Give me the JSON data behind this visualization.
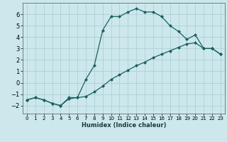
{
  "xlabel": "Humidex (Indice chaleur)",
  "bg_color": "#cce8ec",
  "grid_color": "#b0d0d5",
  "line_color": "#1a6060",
  "xlim": [
    -0.5,
    23.5
  ],
  "ylim": [
    -2.7,
    7.0
  ],
  "yticks": [
    -2,
    -1,
    0,
    1,
    2,
    3,
    4,
    5,
    6
  ],
  "xticks": [
    0,
    1,
    2,
    3,
    4,
    5,
    6,
    7,
    8,
    9,
    10,
    11,
    12,
    13,
    14,
    15,
    16,
    17,
    18,
    19,
    20,
    21,
    22,
    23
  ],
  "line1_x": [
    0,
    1,
    2,
    3,
    4,
    5,
    6,
    7,
    8,
    9,
    10,
    11,
    12,
    13,
    14,
    15,
    16,
    17,
    18,
    19,
    20,
    21,
    22,
    23
  ],
  "line1_y": [
    -1.5,
    -1.3,
    -1.5,
    -1.8,
    -2.0,
    -1.3,
    -1.3,
    0.3,
    1.5,
    4.6,
    5.8,
    5.8,
    6.2,
    6.5,
    6.2,
    6.2,
    5.8,
    5.0,
    4.5,
    3.8,
    4.2,
    3.0,
    3.0,
    2.5
  ],
  "line2_x": [
    0,
    1,
    2,
    3,
    4,
    5,
    6,
    7,
    8,
    9,
    10,
    11,
    12,
    13,
    14,
    15,
    16,
    17,
    18,
    19,
    20,
    21,
    22,
    23
  ],
  "line2_y": [
    -1.5,
    -1.3,
    -1.5,
    -1.8,
    -2.0,
    -1.4,
    -1.3,
    -1.2,
    -0.8,
    -0.3,
    0.3,
    0.7,
    1.1,
    1.5,
    1.8,
    2.2,
    2.5,
    2.8,
    3.1,
    3.4,
    3.5,
    3.0,
    3.0,
    2.5
  ]
}
